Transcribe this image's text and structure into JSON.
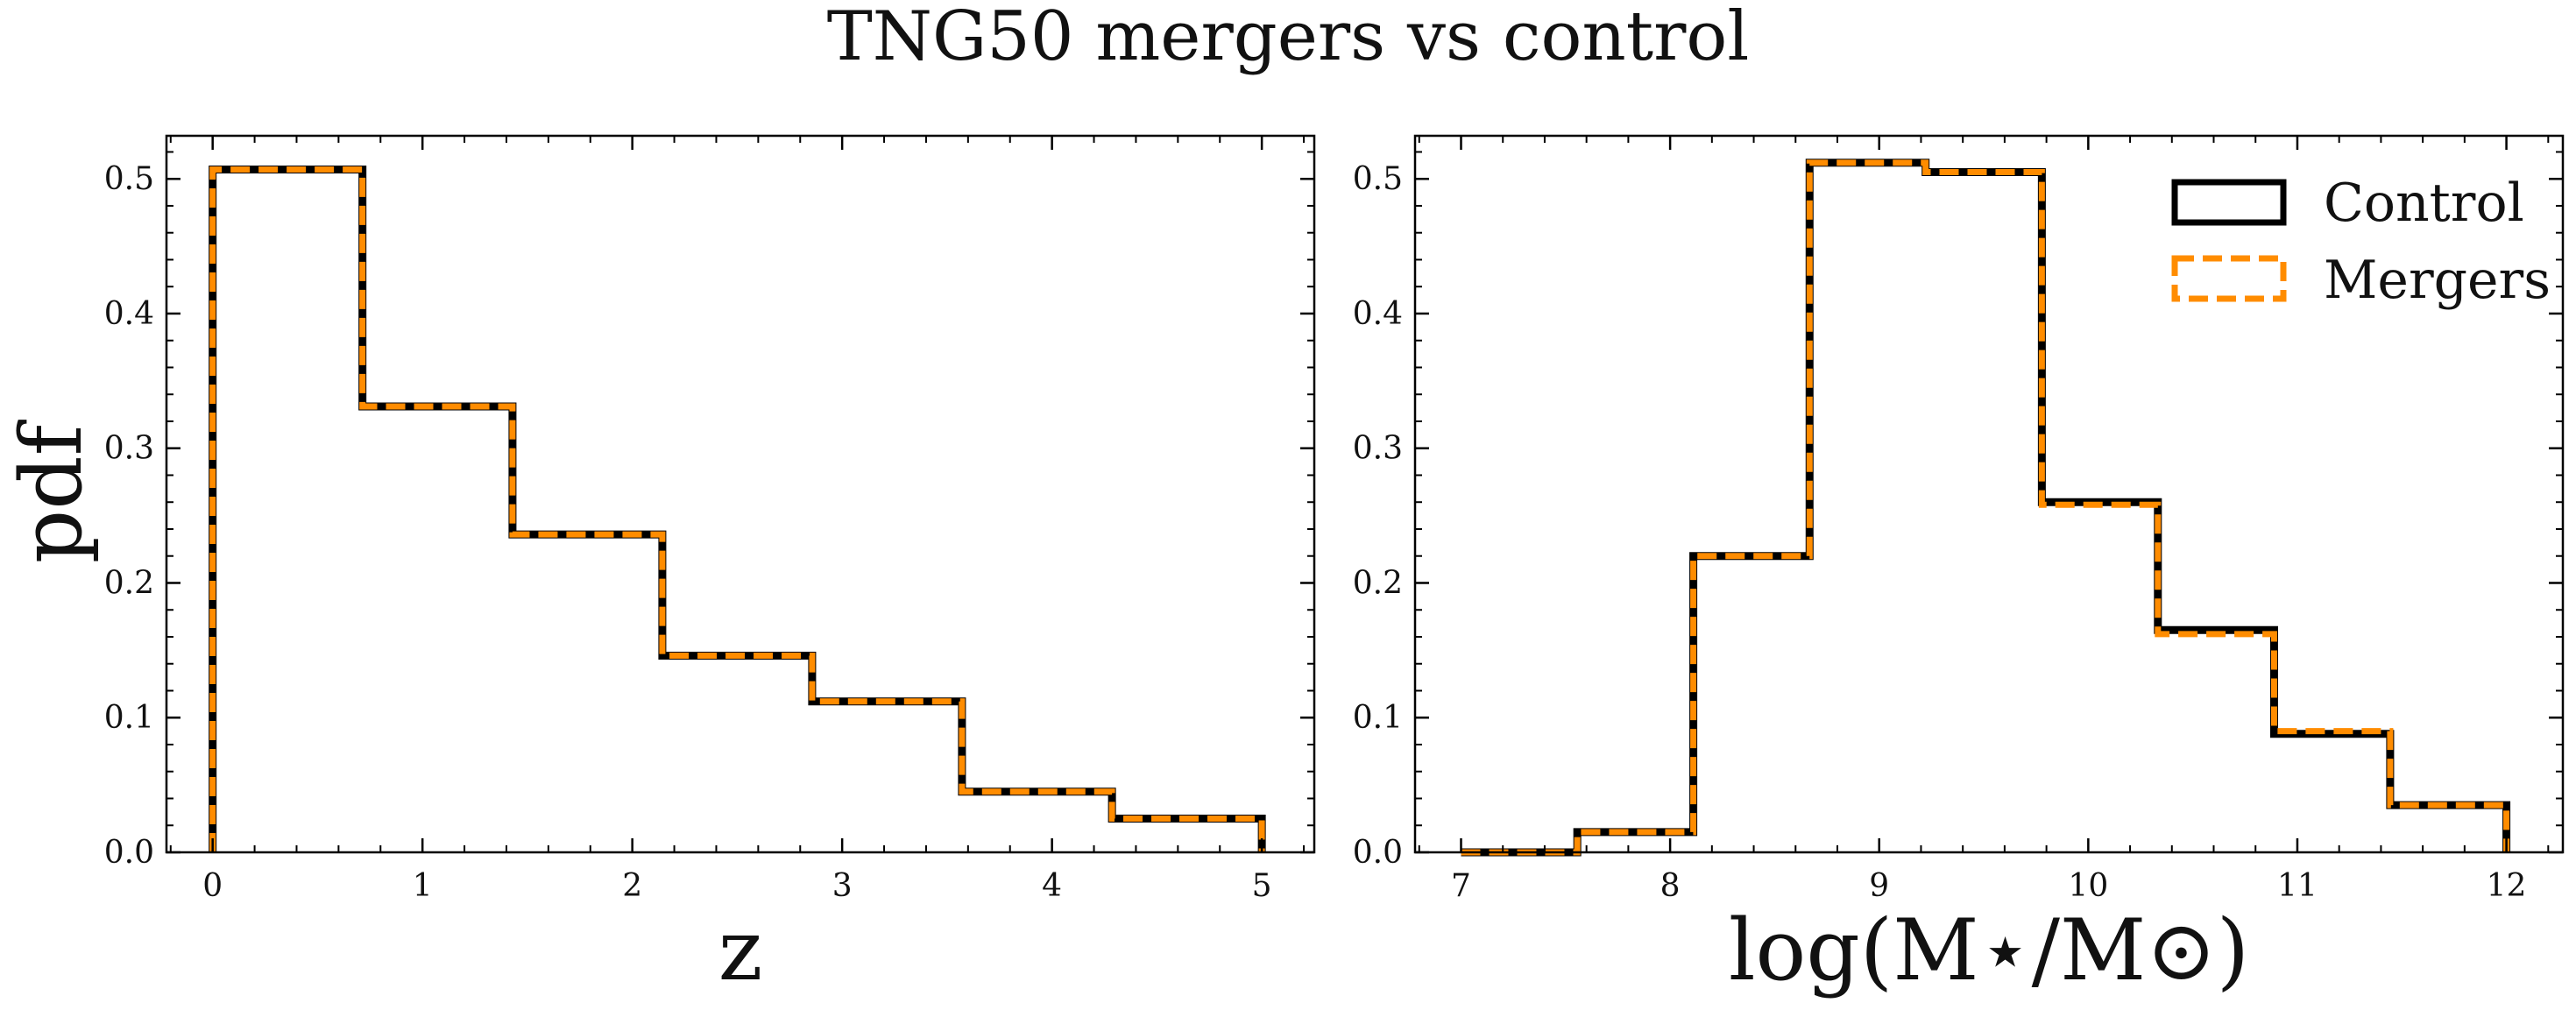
{
  "title": "TNG50 mergers vs control",
  "colors": {
    "control": "#000000",
    "mergers": "#ff8c00"
  },
  "chart_data": [
    {
      "type": "step",
      "xlabel": "z",
      "ylabel": "pdf",
      "xlim": [
        -0.22,
        5.25
      ],
      "ylim": [
        0,
        0.532
      ],
      "xticks": [
        0,
        1,
        2,
        3,
        4,
        5
      ],
      "xtick_labels": [
        "0",
        "1",
        "2",
        "3",
        "4",
        "5"
      ],
      "yticks": [
        0.0,
        0.1,
        0.2,
        0.3,
        0.4,
        0.5
      ],
      "ytick_labels": [
        "0.0",
        "0.1",
        "0.2",
        "0.3",
        "0.4",
        "0.5"
      ],
      "bin_edges": [
        0,
        0.714,
        1.429,
        2.143,
        2.857,
        3.571,
        4.286,
        5.0
      ],
      "series": [
        {
          "name": "Control",
          "values": [
            0.507,
            0.331,
            0.236,
            0.146,
            0.112,
            0.045,
            0.025
          ]
        },
        {
          "name": "Mergers",
          "values": [
            0.507,
            0.331,
            0.236,
            0.146,
            0.112,
            0.045,
            0.025
          ]
        }
      ]
    },
    {
      "type": "step",
      "xlabel": "log(M⋆/M⊙)",
      "ylabel": "",
      "xlim": [
        6.78,
        12.27
      ],
      "ylim": [
        0,
        0.532
      ],
      "xticks": [
        7,
        8,
        9,
        10,
        11,
        12
      ],
      "xtick_labels": [
        "7",
        "8",
        "9",
        "10",
        "11",
        "12"
      ],
      "yticks": [
        0.0,
        0.1,
        0.2,
        0.3,
        0.4,
        0.5
      ],
      "ytick_labels": [
        "0.0",
        "0.1",
        "0.2",
        "0.3",
        "0.4",
        "0.5"
      ],
      "bin_edges": [
        7.0,
        7.556,
        8.111,
        8.667,
        9.222,
        9.778,
        10.333,
        10.889,
        11.444,
        12.0
      ],
      "legend": {
        "position": "top-right",
        "entries": [
          "Control",
          "Mergers"
        ]
      },
      "series": [
        {
          "name": "Control",
          "values": [
            0.0,
            0.015,
            0.22,
            0.512,
            0.505,
            0.26,
            0.165,
            0.088,
            0.035
          ]
        },
        {
          "name": "Mergers",
          "values": [
            0.0,
            0.015,
            0.22,
            0.512,
            0.505,
            0.258,
            0.162,
            0.09,
            0.035
          ]
        }
      ]
    }
  ]
}
